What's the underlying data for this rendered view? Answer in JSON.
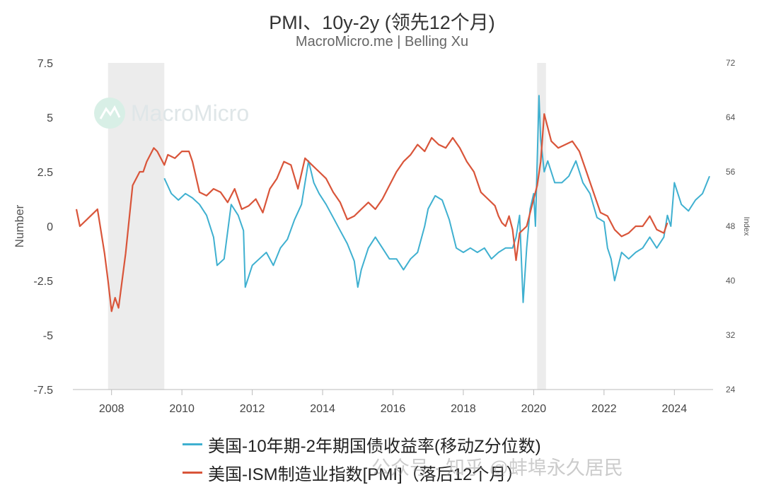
{
  "title": "PMI、10y-2y (领先12个月)",
  "subtitle": "MacroMicro.me | Belling Xu",
  "watermark": "MacroMicro",
  "bottom_watermark": "公众号 · 知乎 @蚌埠永久居民",
  "chart_data": {
    "type": "line",
    "xlim": [
      2006.9,
      2025.1
    ],
    "x_ticks": [
      "2008",
      "2010",
      "2012",
      "2014",
      "2016",
      "2018",
      "2020",
      "2022",
      "2024"
    ],
    "left_axis": {
      "label": "Number",
      "ylim": [
        -7.5,
        7.5
      ],
      "ticks": [
        "7.5",
        "5",
        "2.5",
        "0",
        "-2.5",
        "-5",
        "-7.5"
      ]
    },
    "right_axis": {
      "label": "Index",
      "ylim": [
        24,
        72
      ],
      "ticks": [
        "72",
        "64",
        "56",
        "48",
        "40",
        "32",
        "24"
      ]
    },
    "shaded_periods": [
      [
        2007.9,
        2009.5
      ],
      [
        2020.1,
        2020.35
      ]
    ],
    "colors": {
      "series1": "#3fb0d0",
      "series2": "#d9553a",
      "shade": "#ececec"
    },
    "series": [
      {
        "name": "美国-10年期-2年期国债收益率(移动Z分位数)",
        "axis": "left",
        "x": [
          2009.5,
          2009.7,
          2009.9,
          2010.1,
          2010.3,
          2010.5,
          2010.7,
          2010.9,
          2011.0,
          2011.2,
          2011.4,
          2011.6,
          2011.75,
          2011.8,
          2012.0,
          2012.2,
          2012.4,
          2012.6,
          2012.8,
          2013.0,
          2013.2,
          2013.4,
          2013.6,
          2013.75,
          2013.9,
          2014.1,
          2014.3,
          2014.5,
          2014.7,
          2014.9,
          2015.0,
          2015.1,
          2015.3,
          2015.5,
          2015.7,
          2015.9,
          2016.1,
          2016.3,
          2016.5,
          2016.7,
          2016.9,
          2017.0,
          2017.2,
          2017.4,
          2017.6,
          2017.8,
          2018.0,
          2018.2,
          2018.4,
          2018.6,
          2018.8,
          2019.0,
          2019.2,
          2019.4,
          2019.5,
          2019.6,
          2019.65,
          2019.7,
          2019.8,
          2019.9,
          2020.0,
          2020.05,
          2020.15,
          2020.2,
          2020.3,
          2020.4,
          2020.6,
          2020.8,
          2021.0,
          2021.2,
          2021.4,
          2021.6,
          2021.8,
          2022.0,
          2022.1,
          2022.2,
          2022.3,
          2022.5,
          2022.7,
          2022.9,
          2023.1,
          2023.3,
          2023.5,
          2023.7,
          2023.8,
          2023.9,
          2024.0,
          2024.2,
          2024.4,
          2024.6,
          2024.8,
          2025.0
        ],
        "y": [
          2.2,
          1.5,
          1.2,
          1.5,
          1.3,
          1.0,
          0.5,
          -0.5,
          -1.8,
          -1.5,
          1.0,
          0.5,
          -0.2,
          -2.8,
          -1.8,
          -1.5,
          -1.2,
          -1.8,
          -1.0,
          -0.6,
          0.3,
          1.0,
          3.0,
          2.0,
          1.5,
          1.0,
          0.4,
          -0.2,
          -0.8,
          -1.6,
          -2.8,
          -2.0,
          -1.0,
          -0.5,
          -1.0,
          -1.5,
          -1.5,
          -2.0,
          -1.5,
          -1.2,
          0.0,
          0.8,
          1.4,
          1.2,
          0.3,
          -1.0,
          -1.2,
          -1.0,
          -1.2,
          -1.0,
          -1.5,
          -1.2,
          -1.0,
          -1.0,
          -0.5,
          0.5,
          -1.5,
          -3.5,
          -1.0,
          0.8,
          1.5,
          0.0,
          6.0,
          4.0,
          2.5,
          3.0,
          2.0,
          2.0,
          2.3,
          3.0,
          2.0,
          1.5,
          0.4,
          0.2,
          -1.0,
          -1.5,
          -2.5,
          -1.2,
          -1.5,
          -1.2,
          -1.0,
          -0.5,
          -1.0,
          -0.5,
          0.5,
          0.0,
          2.0,
          1.0,
          0.7,
          1.2,
          1.5,
          2.3
        ]
      },
      {
        "name": "美国-ISM制造业指数[PMI]（落后12个月）",
        "axis": "right",
        "x": [
          2007.0,
          2007.1,
          2007.3,
          2007.5,
          2007.6,
          2007.8,
          2007.9,
          2008.0,
          2008.1,
          2008.2,
          2008.4,
          2008.6,
          2008.8,
          2008.9,
          2009.0,
          2009.2,
          2009.3,
          2009.5,
          2009.6,
          2009.8,
          2010.0,
          2010.2,
          2010.3,
          2010.5,
          2010.7,
          2010.9,
          2011.1,
          2011.3,
          2011.5,
          2011.7,
          2011.9,
          2012.1,
          2012.3,
          2012.5,
          2012.7,
          2012.9,
          2013.1,
          2013.3,
          2013.5,
          2013.7,
          2013.9,
          2014.1,
          2014.3,
          2014.5,
          2014.7,
          2014.9,
          2015.1,
          2015.3,
          2015.5,
          2015.7,
          2015.9,
          2016.1,
          2016.3,
          2016.5,
          2016.7,
          2016.9,
          2017.1,
          2017.3,
          2017.5,
          2017.7,
          2017.9,
          2018.1,
          2018.3,
          2018.5,
          2018.7,
          2018.9,
          2019.0,
          2019.1,
          2019.2,
          2019.3,
          2019.4,
          2019.5,
          2019.6,
          2019.8,
          2020.0,
          2020.1,
          2020.2,
          2020.3,
          2020.5,
          2020.7,
          2020.9,
          2021.1,
          2021.3,
          2021.5,
          2021.7,
          2021.9,
          2022.1,
          2022.3,
          2022.5,
          2022.7,
          2022.9,
          2023.1,
          2023.3,
          2023.5,
          2023.7,
          2023.8
        ],
        "y": [
          50.5,
          48.0,
          49.0,
          50.0,
          50.5,
          44.0,
          40.0,
          35.5,
          37.5,
          36.0,
          44.0,
          54.0,
          56.0,
          56.0,
          57.5,
          59.5,
          59.0,
          57.0,
          58.5,
          58.0,
          59.0,
          59.0,
          57.5,
          53.0,
          52.5,
          53.5,
          53.0,
          51.5,
          53.5,
          50.5,
          51.0,
          52.0,
          50.0,
          53.5,
          55.0,
          57.5,
          57.0,
          53.5,
          58.0,
          57.0,
          56.0,
          55.0,
          53.0,
          51.5,
          49.0,
          49.5,
          50.5,
          51.5,
          50.5,
          52.0,
          54.0,
          56.0,
          57.5,
          58.5,
          60.0,
          59.0,
          61.0,
          60.0,
          59.5,
          61.0,
          59.5,
          57.5,
          56.0,
          53.0,
          52.0,
          51.0,
          49.5,
          48.5,
          48.0,
          49.5,
          47.5,
          43.0,
          47.0,
          48.0,
          52.0,
          54.0,
          57.5,
          64.5,
          60.5,
          59.5,
          60.0,
          60.5,
          59.0,
          56.0,
          53.0,
          50.0,
          49.5,
          47.5,
          46.5,
          47.0,
          48.0,
          48.0,
          49.5,
          47.5,
          47.0,
          48.5
        ]
      }
    ]
  }
}
